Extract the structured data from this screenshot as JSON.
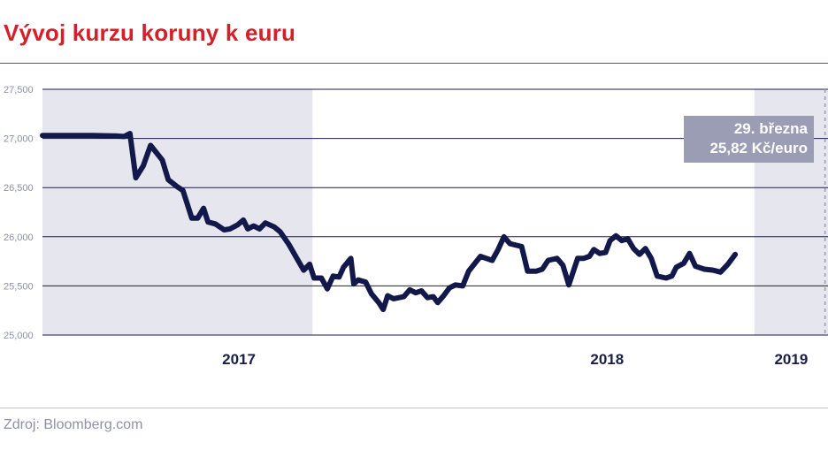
{
  "title": "Vývoj kurzu koruny k euru",
  "source": "Zdroj: Bloomberg.com",
  "callout": {
    "line1": "29. března",
    "line2": "25,82 Kč/euro"
  },
  "colors": {
    "title": "#d4202a",
    "line": "#13184a",
    "band": "#e6e6ee",
    "grid": "#1a1f4a",
    "callout": "#9a9db3"
  },
  "chart_data": {
    "type": "line",
    "title": "Vývoj kurzu koruny k euru",
    "xlabel": "",
    "ylabel": "",
    "ylim": [
      25000,
      27500
    ],
    "yticks": [
      {
        "value": 27500,
        "label": "27,500"
      },
      {
        "value": 27000,
        "label": "27,000"
      },
      {
        "value": 26500,
        "label": "26,500"
      },
      {
        "value": 26000,
        "label": "26,000"
      },
      {
        "value": 25500,
        "label": "25,500"
      },
      {
        "value": 25000,
        "label": "25,000"
      }
    ],
    "xlim": [
      2016.583,
      2019.25
    ],
    "year_labels": [
      {
        "label": "2017",
        "x": 2017.25
      },
      {
        "label": "2018",
        "x": 2018.5
      },
      {
        "label": "2019",
        "x": 2019.125
      }
    ],
    "year_bands": [
      [
        2016.583,
        2017.5
      ],
      [
        2019.0,
        2019.25
      ]
    ],
    "grid": true,
    "highlight": {
      "x": 2019.24,
      "value": 25820
    },
    "series": [
      {
        "values": [
          [
            2016.583,
            27030
          ],
          [
            2016.65,
            27030
          ],
          [
            2016.75,
            27030
          ],
          [
            2016.83,
            27025
          ],
          [
            2016.86,
            27020
          ],
          [
            2016.88,
            27050
          ],
          [
            2016.9,
            26600
          ],
          [
            2016.925,
            26720
          ],
          [
            2016.95,
            26930
          ],
          [
            2016.99,
            26780
          ],
          [
            2017.01,
            26580
          ],
          [
            2017.04,
            26510
          ],
          [
            2017.06,
            26470
          ],
          [
            2017.09,
            26190
          ],
          [
            2017.11,
            26190
          ],
          [
            2017.13,
            26290
          ],
          [
            2017.145,
            26150
          ],
          [
            2017.17,
            26130
          ],
          [
            2017.2,
            26070
          ],
          [
            2017.22,
            26080
          ],
          [
            2017.245,
            26120
          ],
          [
            2017.265,
            26170
          ],
          [
            2017.28,
            26080
          ],
          [
            2017.3,
            26110
          ],
          [
            2017.32,
            26080
          ],
          [
            2017.34,
            26140
          ],
          [
            2017.37,
            26100
          ],
          [
            2017.39,
            26050
          ],
          [
            2017.42,
            25920
          ],
          [
            2017.445,
            25790
          ],
          [
            2017.47,
            25660
          ],
          [
            2017.49,
            25720
          ],
          [
            2017.505,
            25580
          ],
          [
            2017.53,
            25580
          ],
          [
            2017.55,
            25470
          ],
          [
            2017.57,
            25600
          ],
          [
            2017.59,
            25590
          ],
          [
            2017.605,
            25690
          ],
          [
            2017.63,
            25780
          ],
          [
            2017.64,
            25520
          ],
          [
            2017.655,
            25560
          ],
          [
            2017.68,
            25540
          ],
          [
            2017.7,
            25420
          ],
          [
            2017.725,
            25330
          ],
          [
            2017.74,
            25260
          ],
          [
            2017.755,
            25400
          ],
          [
            2017.775,
            25370
          ],
          [
            2017.81,
            25390
          ],
          [
            2017.83,
            25460
          ],
          [
            2017.85,
            25430
          ],
          [
            2017.87,
            25450
          ],
          [
            2017.89,
            25380
          ],
          [
            2017.91,
            25390
          ],
          [
            2017.925,
            25330
          ],
          [
            2017.945,
            25400
          ],
          [
            2017.965,
            25480
          ],
          [
            2017.985,
            25510
          ],
          [
            2018.01,
            25500
          ],
          [
            2018.03,
            25650
          ],
          [
            2018.07,
            25800
          ],
          [
            2018.09,
            25780
          ],
          [
            2018.11,
            25760
          ],
          [
            2018.13,
            25870
          ],
          [
            2018.15,
            26000
          ],
          [
            2018.17,
            25930
          ],
          [
            2018.21,
            25900
          ],
          [
            2018.23,
            25650
          ],
          [
            2018.26,
            25650
          ],
          [
            2018.28,
            25670
          ],
          [
            2018.3,
            25760
          ],
          [
            2018.33,
            25780
          ],
          [
            2018.35,
            25710
          ],
          [
            2018.37,
            25510
          ],
          [
            2018.4,
            25780
          ],
          [
            2018.42,
            25780
          ],
          [
            2018.44,
            25800
          ],
          [
            2018.455,
            25870
          ],
          [
            2018.475,
            25830
          ],
          [
            2018.495,
            25840
          ],
          [
            2018.51,
            25960
          ],
          [
            2018.53,
            26010
          ],
          [
            2018.55,
            25960
          ],
          [
            2018.57,
            25980
          ],
          [
            2018.59,
            25880
          ],
          [
            2018.61,
            25820
          ],
          [
            2018.63,
            25880
          ],
          [
            2018.65,
            25780
          ],
          [
            2018.67,
            25600
          ],
          [
            2018.7,
            25580
          ],
          [
            2018.72,
            25600
          ],
          [
            2018.735,
            25690
          ],
          [
            2018.76,
            25730
          ],
          [
            2018.78,
            25830
          ],
          [
            2018.8,
            25700
          ],
          [
            2018.83,
            25670
          ],
          [
            2018.86,
            25660
          ],
          [
            2018.885,
            25640
          ],
          [
            2018.91,
            25720
          ],
          [
            2018.935,
            25820
          ]
        ]
      }
    ]
  }
}
